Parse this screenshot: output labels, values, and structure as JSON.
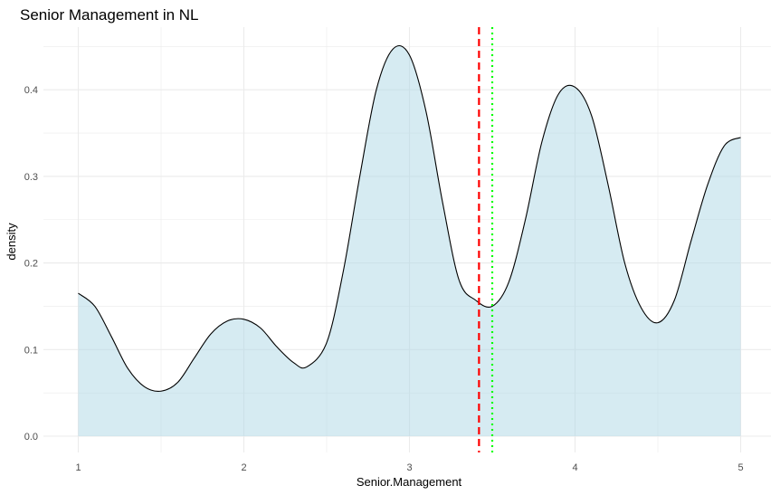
{
  "chart_data": {
    "type": "area",
    "title": "Senior Management in  NL",
    "xlabel": "Senior.Management",
    "ylabel": "density",
    "xlim": [
      1,
      5
    ],
    "ylim": [
      0,
      0.45
    ],
    "x_ticks": [
      "1",
      "2",
      "3",
      "4",
      "5"
    ],
    "y_ticks": [
      "0.0",
      "0.1",
      "0.2",
      "0.3",
      "0.4"
    ],
    "grid": true,
    "series": [
      {
        "x": [
          1.0,
          1.1,
          1.2,
          1.3,
          1.4,
          1.5,
          1.6,
          1.7,
          1.8,
          1.9,
          2.0,
          2.1,
          2.2,
          2.3,
          2.38,
          2.5,
          2.6,
          2.7,
          2.8,
          2.9,
          3.0,
          3.1,
          3.2,
          3.3,
          3.4,
          3.5,
          3.6,
          3.7,
          3.8,
          3.9,
          4.0,
          4.1,
          4.2,
          4.3,
          4.4,
          4.5,
          4.6,
          4.7,
          4.8,
          4.9,
          5.0
        ],
        "y": [
          0.165,
          0.15,
          0.115,
          0.078,
          0.057,
          0.052,
          0.062,
          0.09,
          0.118,
          0.133,
          0.135,
          0.125,
          0.103,
          0.085,
          0.08,
          0.108,
          0.19,
          0.3,
          0.4,
          0.447,
          0.44,
          0.375,
          0.27,
          0.18,
          0.157,
          0.15,
          0.178,
          0.25,
          0.34,
          0.395,
          0.403,
          0.37,
          0.29,
          0.2,
          0.148,
          0.131,
          0.157,
          0.225,
          0.29,
          0.335,
          0.345
        ]
      }
    ],
    "vlines": [
      {
        "x": 3.42,
        "color": "#ff0000",
        "style": "dashed"
      },
      {
        "x": 3.5,
        "color": "#00ff00",
        "style": "dotted"
      }
    ],
    "colors": {
      "fill": "#add8e6",
      "line": "#000000",
      "grid": "#ebebeb"
    }
  }
}
